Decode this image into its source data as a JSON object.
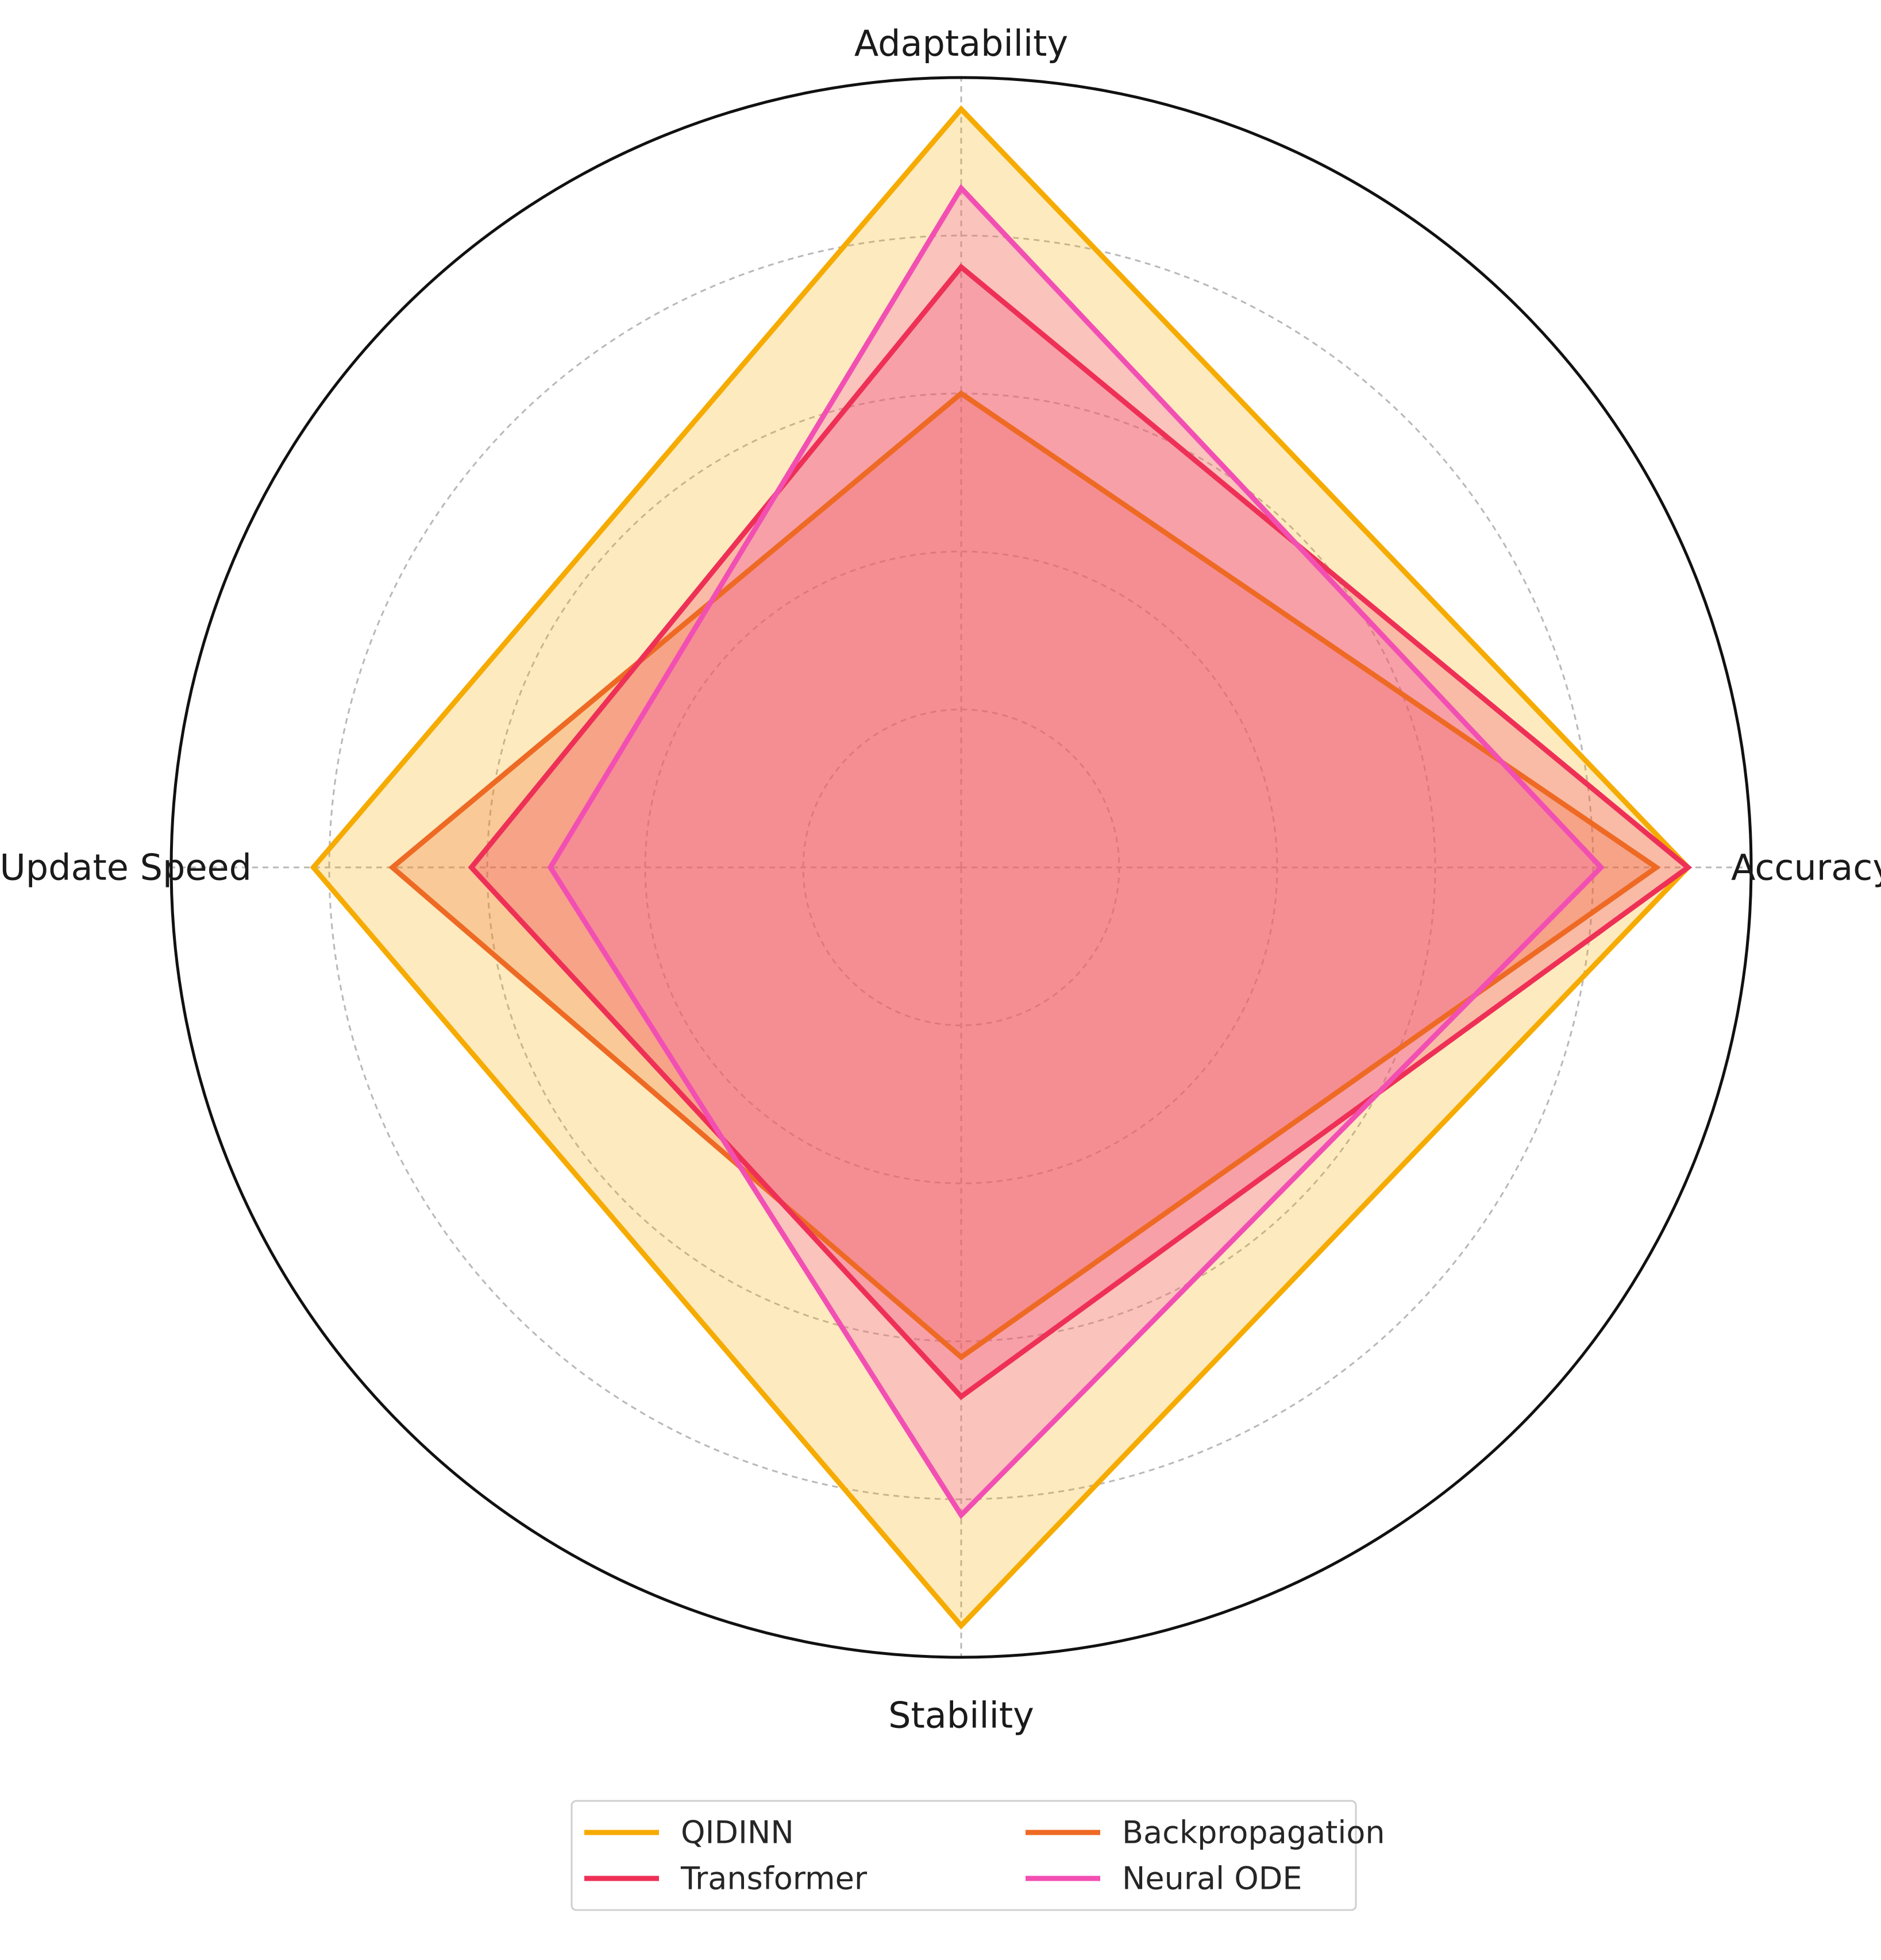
{
  "chart_data": {
    "type": "radar",
    "axes": [
      "Accuracy",
      "Adaptability",
      "Update Speed",
      "Stability"
    ],
    "rlim": [
      0,
      5
    ],
    "rticks": [
      1,
      2,
      3,
      4,
      5
    ],
    "grid": true,
    "legend_position": "bottom-center",
    "series": [
      {
        "name": "QIDINN",
        "values": [
          4.6,
          4.8,
          4.1,
          4.8
        ],
        "color": "#f6ab00",
        "fill_opacity": 0.25
      },
      {
        "name": "Backpropagation",
        "values": [
          4.4,
          3.0,
          3.6,
          3.1
        ],
        "color": "#ee6a24",
        "fill_opacity": 0.25
      },
      {
        "name": "Transformer",
        "values": [
          4.6,
          3.8,
          3.1,
          3.35
        ],
        "color": "#ee3057",
        "fill_opacity": 0.25
      },
      {
        "name": "Neural ODE",
        "values": [
          4.05,
          4.3,
          2.6,
          4.1
        ],
        "color": "#f24fb3",
        "fill_opacity": 0.25
      }
    ]
  }
}
